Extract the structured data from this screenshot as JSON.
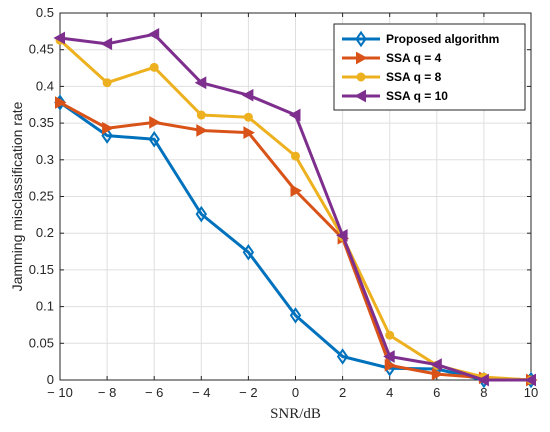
{
  "chart_data": {
    "type": "line",
    "xlabel": "SNR/dB",
    "ylabel": "Jamming misclassification rate",
    "xlim": [
      -10,
      10
    ],
    "ylim": [
      0,
      0.5
    ],
    "x": [
      -10,
      -8,
      -6,
      -4,
      -2,
      0,
      2,
      4,
      6,
      8,
      10
    ],
    "x_tick_labels": [
      "− 10",
      "− 8",
      "− 6",
      "− 4",
      "− 2",
      "0",
      "2",
      "4",
      "6",
      "8",
      "10"
    ],
    "y_ticks": [
      0,
      0.05,
      0.1,
      0.15,
      0.2,
      0.25,
      0.3,
      0.35,
      0.4,
      0.45,
      0.5
    ],
    "y_tick_labels": [
      "0",
      "0.05",
      "0.1",
      "0.15",
      "0.2",
      "0.25",
      "0.3",
      "0.35",
      "0.4",
      "0.45",
      "0.5"
    ],
    "grid": true,
    "legend_position": "top-right",
    "series": [
      {
        "name": "Proposed algorithm",
        "color": "#0072BD",
        "marker": "diamond",
        "values": [
          0.378,
          0.333,
          0.328,
          0.226,
          0.174,
          0.088,
          0.032,
          0.016,
          0.015,
          0.0,
          0.0
        ]
      },
      {
        "name": "SSA q = 4",
        "color": "#D95319",
        "marker": "triangle-right",
        "values": [
          0.378,
          0.343,
          0.351,
          0.34,
          0.337,
          0.258,
          0.193,
          0.02,
          0.008,
          0.003,
          0.0
        ]
      },
      {
        "name": "SSA q = 8",
        "color": "#EDB120",
        "marker": "circle",
        "values": [
          0.463,
          0.405,
          0.426,
          0.361,
          0.358,
          0.305,
          0.195,
          0.061,
          0.02,
          0.004,
          0.0
        ]
      },
      {
        "name": "SSA q = 10",
        "color": "#7E2F8E",
        "marker": "triangle-left",
        "values": [
          0.466,
          0.458,
          0.471,
          0.405,
          0.388,
          0.361,
          0.197,
          0.032,
          0.021,
          0.0,
          0.0
        ]
      }
    ]
  }
}
